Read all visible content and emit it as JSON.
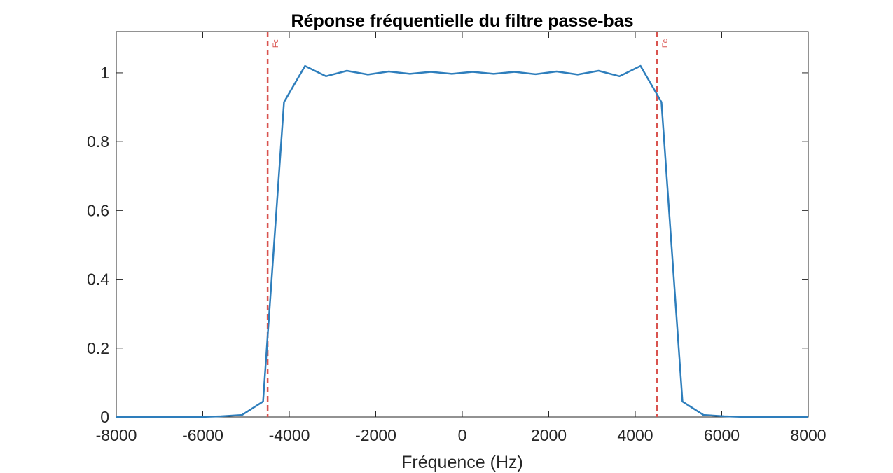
{
  "chart_data": {
    "type": "line",
    "title": "Réponse fréquentielle du filtre passe-bas",
    "xlabel": "Fréquence (Hz)",
    "ylabel": "",
    "xlim": [
      -8000,
      8000
    ],
    "ylim": [
      0,
      1.12
    ],
    "x_ticks": [
      -8000,
      -6000,
      -4000,
      -2000,
      0,
      2000,
      4000,
      6000,
      8000
    ],
    "x_tick_labels": [
      "-8000",
      "-6000",
      "-4000",
      "-2000",
      "0",
      "2000",
      "4000",
      "6000",
      "8000"
    ],
    "y_ticks": [
      0,
      0.2,
      0.4,
      0.6,
      0.8,
      1
    ],
    "y_tick_labels": [
      "0",
      "0.2",
      "0.4",
      "0.6",
      "0.8",
      "1"
    ],
    "grid": false,
    "box": true,
    "series": [
      {
        "color": "#2e7ebc",
        "x": [
          -8000,
          -7515,
          -7030,
          -6545,
          -6060,
          -5576,
          -5091,
          -4606,
          -4121,
          -3636,
          -3152,
          -2667,
          -2182,
          -1697,
          -1212,
          -727,
          -242,
          242,
          727,
          1212,
          1697,
          2182,
          2667,
          3152,
          3636,
          4121,
          4606,
          5091,
          5576,
          6060,
          6545,
          7030,
          7515,
          8000
        ],
        "values": [
          0.0,
          0.0,
          0.0,
          0.0,
          0.0,
          0.002,
          0.006,
          0.045,
          0.915,
          1.02,
          0.99,
          1.006,
          0.995,
          1.004,
          0.997,
          1.003,
          0.997,
          1.003,
          0.997,
          1.003,
          0.996,
          1.004,
          0.995,
          1.006,
          0.99,
          1.02,
          0.915,
          0.045,
          0.006,
          0.002,
          0.0,
          0.0,
          0.0,
          0.0
        ]
      }
    ],
    "reference_lines": [
      {
        "x": -4500,
        "label": "Fc",
        "color": "#d9534f",
        "style": "dashed"
      },
      {
        "x": 4500,
        "label": "Fc",
        "color": "#d9534f",
        "style": "dashed"
      }
    ]
  }
}
